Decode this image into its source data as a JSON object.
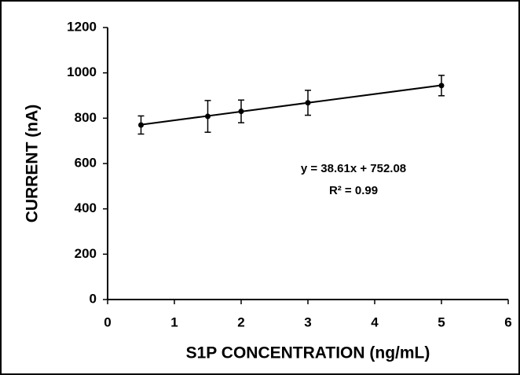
{
  "chart_data": {
    "type": "scatter",
    "x_label": "S1P CONCENTRATION (ng/mL)",
    "y_label": "CURRENT (nA)",
    "x": [
      0.5,
      1.5,
      2,
      3,
      5
    ],
    "values": [
      770,
      808,
      830,
      868,
      944
    ],
    "errors": [
      40,
      70,
      50,
      55,
      45
    ],
    "color": "#000000",
    "xlim": [
      0,
      6
    ],
    "xticks": [
      0,
      1,
      2,
      3,
      4,
      5,
      6
    ],
    "ylim": [
      0,
      1200
    ],
    "yticks": [
      0,
      200,
      400,
      600,
      800,
      1000,
      1200
    ],
    "grid": false,
    "trendline": {
      "label": "y = 38.61x + 752.08",
      "slope": 38.61,
      "intercept": 752.08,
      "r2_label": "R² = 0.99"
    }
  }
}
